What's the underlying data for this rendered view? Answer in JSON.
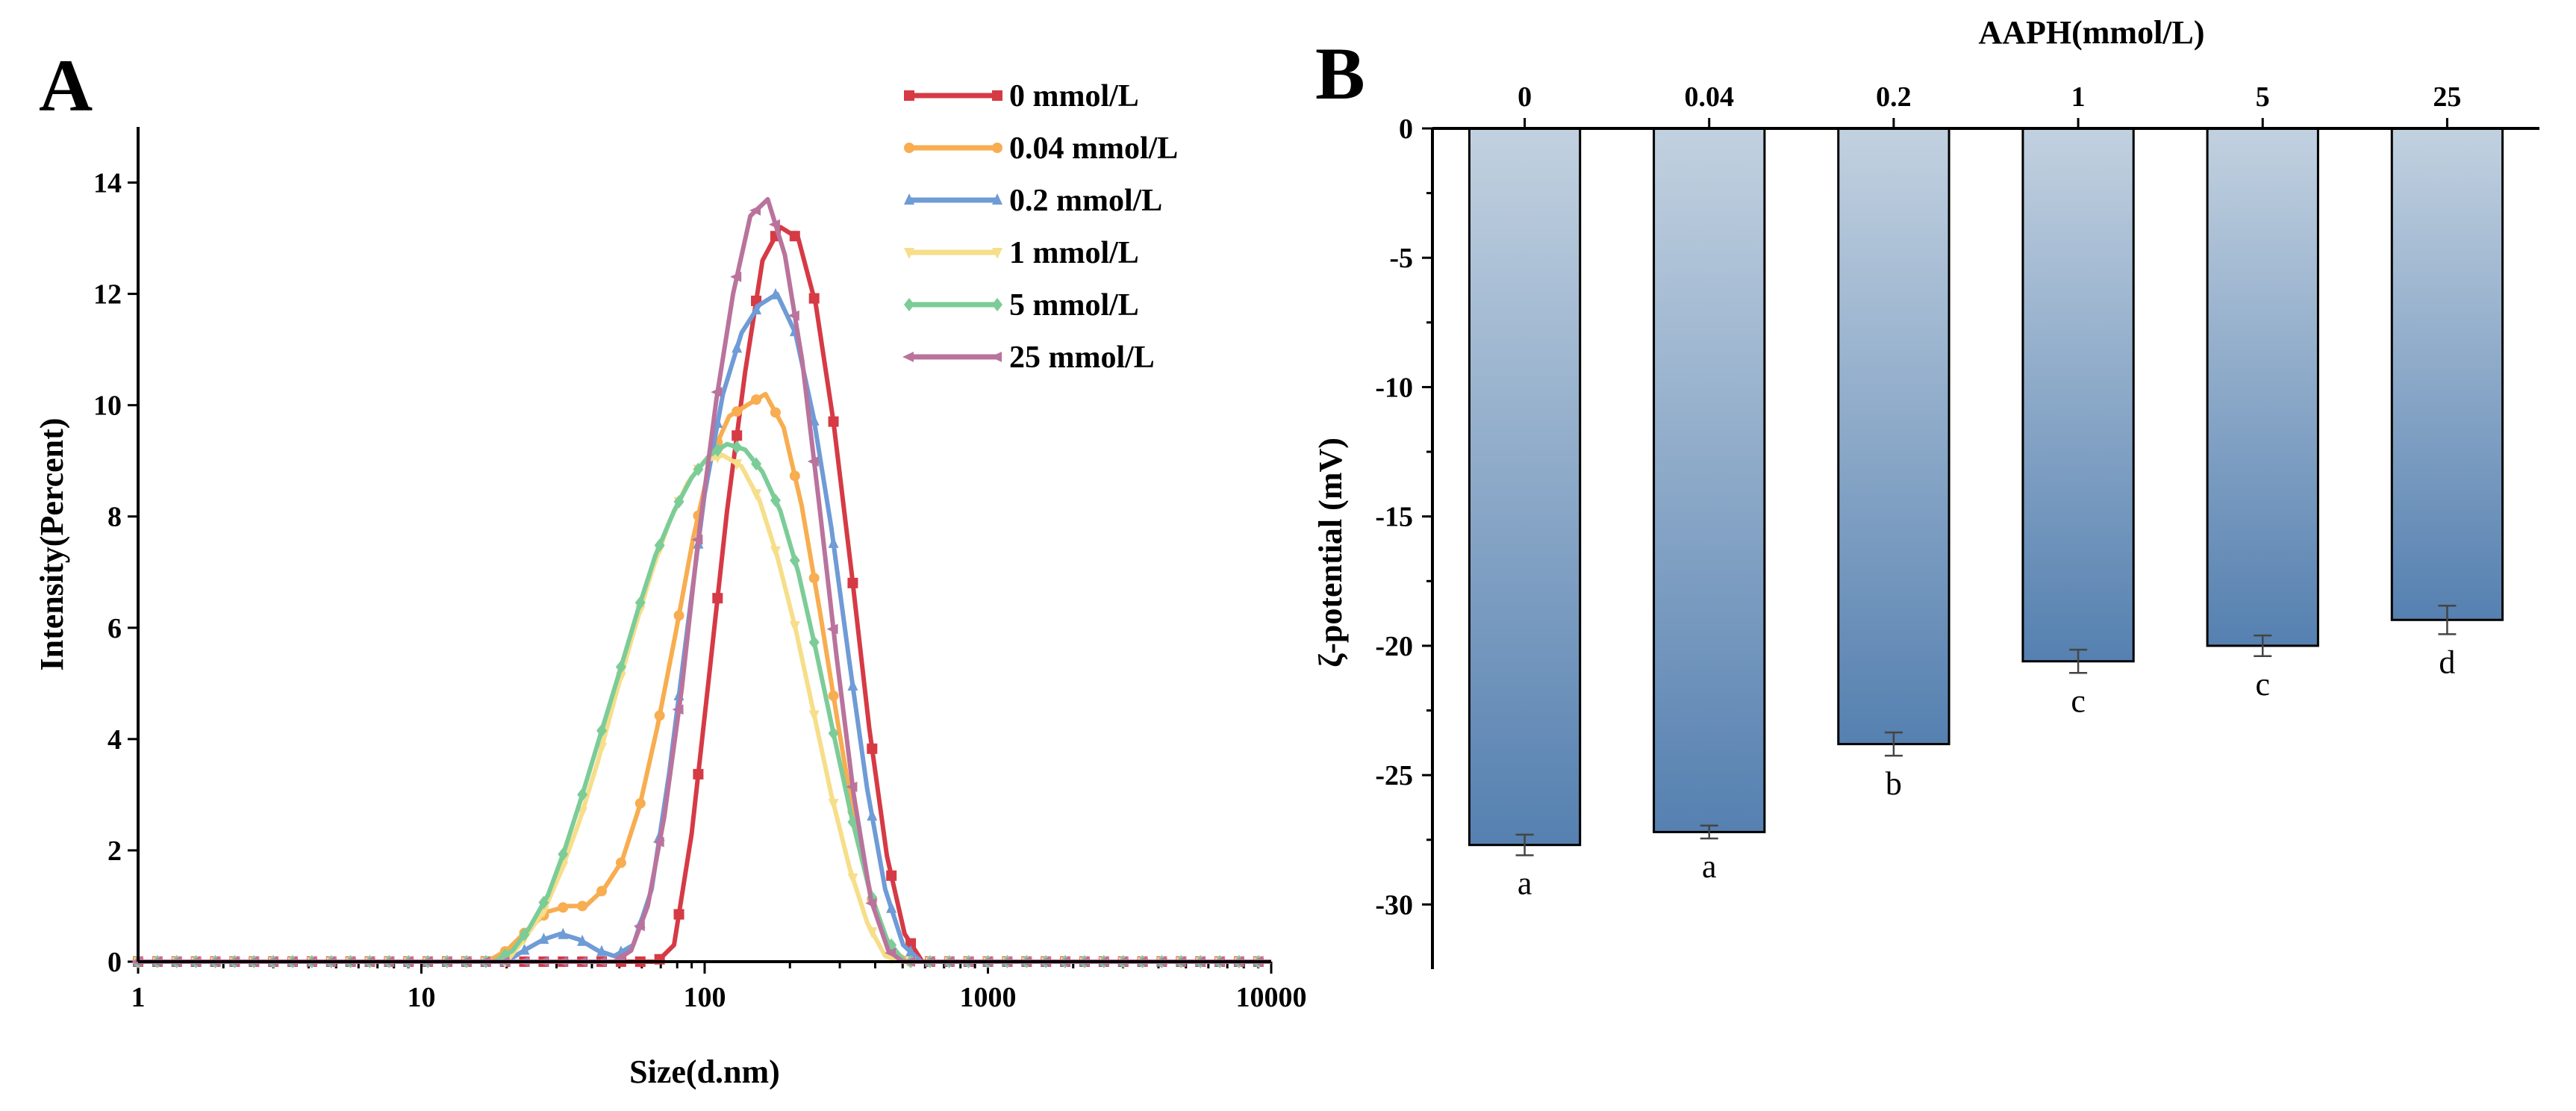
{
  "panels": {
    "A": {
      "letter": "A"
    },
    "B": {
      "letter": "B"
    }
  },
  "chart_data": [
    {
      "type": "line",
      "panel": "A",
      "xlabel": "Size(d.nm)",
      "ylabel": "Intensity(Percent)",
      "xscale": "log",
      "xlim": [
        1,
        10000
      ],
      "ylim": [
        0,
        15
      ],
      "xticks": [
        1,
        10,
        100,
        1000,
        10000
      ],
      "xtick_labels": [
        "1",
        "10",
        "100",
        "1000",
        "10000"
      ],
      "yticks": [
        0,
        2,
        4,
        6,
        8,
        10,
        12,
        14
      ],
      "ytick_labels": [
        "0",
        "2",
        "4",
        "6",
        "8",
        "10",
        "12",
        "14"
      ],
      "legend_position": "top-right",
      "grid": false,
      "series": [
        {
          "name": "0 mmol/L",
          "color": "#d63a45",
          "marker": "square",
          "x": [
            1,
            60,
            68,
            78,
            90,
            104,
            120,
            139,
            160,
            185,
            214,
            247,
            285,
            330,
            381,
            440,
            508,
            587,
            680,
            10000
          ],
          "y": [
            0,
            0,
            0,
            0.3,
            2.3,
            5.2,
            8.1,
            10.6,
            12.6,
            13.2,
            13.0,
            11.8,
            9.7,
            7.0,
            4.2,
            1.9,
            0.5,
            0,
            0,
            0
          ]
        },
        {
          "name": "0.04 mmol/L",
          "color": "#f7ad50",
          "marker": "circle",
          "x": [
            1,
            17,
            20,
            24,
            28,
            33,
            38,
            44,
            51,
            59,
            68,
            79,
            91,
            106,
            122,
            141,
            164,
            190,
            220,
            255,
            295,
            341,
            395,
            457,
            530,
            613,
            10000
          ],
          "y": [
            0,
            0,
            0.2,
            0.6,
            0.9,
            1.0,
            1.0,
            1.3,
            1.8,
            2.8,
            4.2,
            5.9,
            7.6,
            9.1,
            9.8,
            10.0,
            10.2,
            9.6,
            8.2,
            6.3,
            4.3,
            2.4,
            1.0,
            0.2,
            0,
            0,
            0
          ]
        },
        {
          "name": "0.2 mmol/L",
          "color": "#6f9bd6",
          "marker": "triangle",
          "x": [
            1,
            20,
            23,
            27,
            31,
            36,
            42,
            48,
            56,
            65,
            75,
            87,
            100,
            116,
            135,
            156,
            180,
            209,
            242,
            280,
            324,
            375,
            434,
            502,
            582,
            10000
          ],
          "y": [
            0,
            0,
            0.2,
            0.4,
            0.5,
            0.4,
            0.2,
            0.1,
            0.3,
            1.3,
            3.4,
            6.0,
            8.4,
            10.2,
            11.3,
            11.8,
            12.0,
            11.3,
            9.8,
            7.8,
            5.4,
            3.1,
            1.3,
            0.3,
            0,
            0
          ]
        },
        {
          "name": "1 mmol/L",
          "color": "#f6de8a",
          "marker": "triangle-down",
          "x": [
            1,
            20,
            23,
            27,
            31,
            36,
            42,
            48,
            56,
            65,
            75,
            87,
            100,
            116,
            135,
            156,
            180,
            209,
            242,
            280,
            324,
            375,
            434,
            502,
            10000
          ],
          "y": [
            0,
            0,
            0.4,
            0.9,
            1.6,
            2.5,
            3.6,
            4.7,
            5.9,
            7.0,
            7.9,
            8.6,
            9.0,
            9.1,
            8.9,
            8.3,
            7.3,
            6.0,
            4.5,
            3.0,
            1.7,
            0.7,
            0.1,
            0,
            0
          ]
        },
        {
          "name": "5 mmol/L",
          "color": "#7ccc98",
          "marker": "diamond",
          "x": [
            1,
            18,
            21,
            24,
            28,
            32,
            37,
            43,
            50,
            58,
            67,
            78,
            90,
            104,
            120,
            139,
            160,
            185,
            214,
            247,
            285,
            330,
            381,
            440,
            508,
            10000
          ],
          "y": [
            0,
            0,
            0.2,
            0.6,
            1.2,
            2.0,
            3.0,
            4.1,
            5.2,
            6.3,
            7.3,
            8.1,
            8.7,
            9.1,
            9.3,
            9.2,
            8.8,
            8.1,
            7.0,
            5.6,
            4.1,
            2.6,
            1.3,
            0.4,
            0,
            0
          ]
        },
        {
          "name": "25 mmol/L",
          "color": "#b9739c",
          "marker": "triangle-left",
          "x": [
            1,
            48,
            55,
            63,
            72,
            83,
            95,
            110,
            126,
            145,
            167,
            192,
            221,
            254,
            292,
            336,
            387,
            445,
            500,
            10000
          ],
          "y": [
            0,
            0,
            0.2,
            1.0,
            2.6,
            4.9,
            7.6,
            10.1,
            12.0,
            13.4,
            13.7,
            12.7,
            10.8,
            8.2,
            5.5,
            3.0,
            1.1,
            0.2,
            0,
            0
          ]
        }
      ]
    },
    {
      "type": "bar",
      "panel": "B",
      "title": "AAPH(mmol/L)",
      "ylabel": "ζ-potential (mV)",
      "xaxis_position": "top",
      "categories": [
        "0",
        "0.04",
        "0.2",
        "1",
        "5",
        "25"
      ],
      "values": [
        -27.7,
        -27.2,
        -23.8,
        -20.6,
        -20.0,
        -19.0
      ],
      "errors": [
        0.4,
        0.25,
        0.45,
        0.45,
        0.4,
        0.55
      ],
      "significance_labels": [
        "a",
        "a",
        "b",
        "c",
        "c",
        "d"
      ],
      "ylim": [
        -32.5,
        0
      ],
      "yticks": [
        0,
        -5,
        -10,
        -15,
        -20,
        -25,
        -30
      ],
      "ytick_labels": [
        "0",
        "-5",
        "-10",
        "-15",
        "-20",
        "-25",
        "-30"
      ],
      "bar_color_top": "#c2d1e0",
      "bar_color_bottom": "#5580b0",
      "grid": false
    }
  ]
}
